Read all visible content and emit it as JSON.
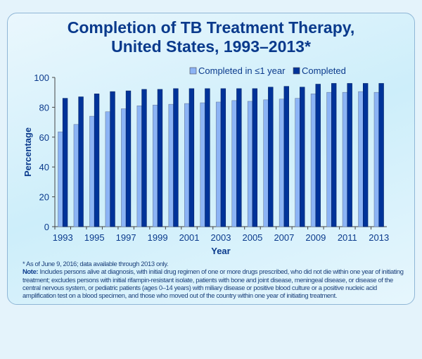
{
  "title_line1": "Completion of TB Treatment Therapy,",
  "title_line2": "United States, 1993–2013*",
  "footnote": "*  As of June 9, 2016; data available through 2013 only.",
  "note_label": "Note:",
  "note_text": " Includes persons alive at diagnosis, with initial drug regimen of one or more drugs prescribed, who did not die within one year of initiating treatment; excludes persons with initial rifampin-resistant isolate, patients with bone and joint disease, meningeal disease, or disease of the central nervous system, or pediatric patients (ages 0–14 years) with miliary disease or positive blood culture or a positive nucleic acid amplification test on a blood specimen, and those who moved out of the country within one year of initiating treatment.",
  "colors": {
    "title": "#0a3a8c",
    "series1": "#8cb4f5",
    "series2": "#003399"
  },
  "chart_data": {
    "type": "bar",
    "xlabel": "Year",
    "ylabel": "Percentage",
    "ylim": [
      0,
      100
    ],
    "yticks": [
      0,
      20,
      40,
      60,
      80,
      100
    ],
    "categories": [
      "1993",
      "1994",
      "1995",
      "1996",
      "1997",
      "1998",
      "1999",
      "2000",
      "2001",
      "2002",
      "2003",
      "2004",
      "2005",
      "2006",
      "2007",
      "2008",
      "2009",
      "2010",
      "2011",
      "2012",
      "2013"
    ],
    "xtick_labels": [
      "1993",
      "1995",
      "1997",
      "1999",
      "2001",
      "2003",
      "2005",
      "2007",
      "2009",
      "2011",
      "2013"
    ],
    "legend": "top",
    "grid": false,
    "series": [
      {
        "name": "Completed in ≤1 year",
        "values": [
          63.5,
          68.5,
          74,
          77,
          79,
          81,
          81.5,
          82,
          82.5,
          83,
          83.5,
          84.5,
          84,
          85,
          85.5,
          86,
          89,
          90,
          90,
          90.5,
          90
        ]
      },
      {
        "name": "Completed",
        "values": [
          86,
          87,
          89,
          90.5,
          91,
          92,
          92,
          92.5,
          92.5,
          92.5,
          92.5,
          92.5,
          92.5,
          93.5,
          94,
          93.5,
          95.5,
          96,
          96,
          96,
          96
        ]
      }
    ]
  }
}
